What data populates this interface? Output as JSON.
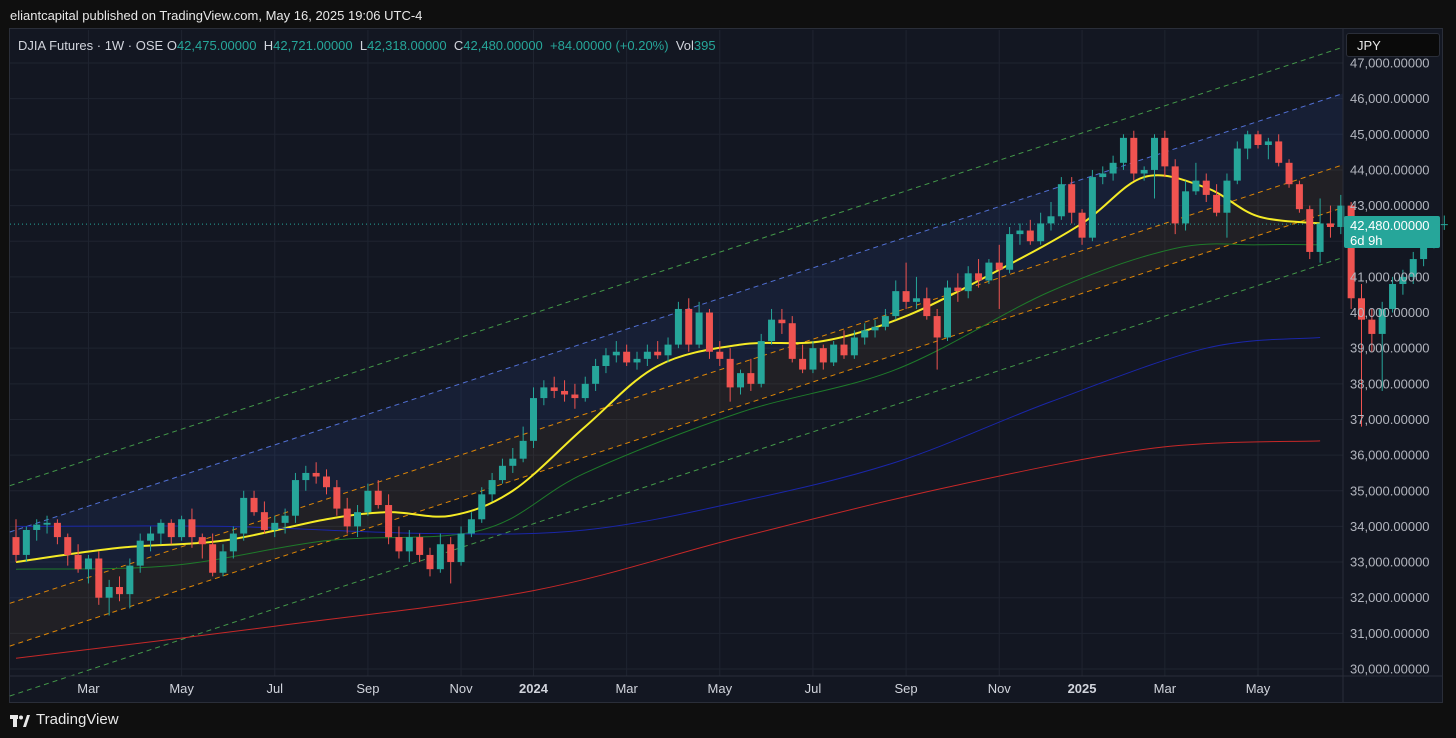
{
  "header": {
    "published_text": "eliantcapital published on TradingView.com, May 16, 2025 19:06 UTC-4"
  },
  "legend": {
    "symbol": "DJIA Futures · 1W · OSE",
    "o_label": "O",
    "o_value": "42,475.00000",
    "h_label": "H",
    "h_value": "42,721.00000",
    "l_label": "L",
    "l_value": "42,318.00000",
    "c_label": "C",
    "c_value": "42,480.00000",
    "change": "+84.00000 (+0.20%)",
    "vol_label": "Vol",
    "vol_value": "395"
  },
  "currency_button": "JPY",
  "price_tag": {
    "price": "42,480.00000",
    "countdown": "6d 9h"
  },
  "footer": {
    "brand": "TradingView"
  },
  "colors": {
    "up": "#26a69a",
    "down": "#ef5350",
    "ma_fast": "#f5eb26",
    "ma_mid": "#1e7a2a",
    "ma_slow": "#1a26a8",
    "ma_long": "#c62828",
    "channel_outer": "#4caf50",
    "channel_upper": "#5b7ef0",
    "channel_inner": "#ff9800"
  },
  "chart_data": {
    "type": "candlestick",
    "timeframe": "1W",
    "currency": "JPY",
    "ylim": [
      30000,
      47000
    ],
    "y_ticks": [
      "30,000.00000",
      "31,000.00000",
      "32,000.00000",
      "33,000.00000",
      "34,000.00000",
      "35,000.00000",
      "36,000.00000",
      "37,000.00000",
      "38,000.00000",
      "39,000.00000",
      "40,000.00000",
      "41,000.00000",
      "42,000.00000",
      "43,000.00000",
      "44,000.00000",
      "45,000.00000",
      "46,000.00000",
      "47,000.00000"
    ],
    "x_ticks": [
      {
        "label": "Mar",
        "bold": false,
        "week": 7
      },
      {
        "label": "May",
        "bold": false,
        "week": 16
      },
      {
        "label": "Jul",
        "bold": false,
        "week": 25
      },
      {
        "label": "Sep",
        "bold": false,
        "week": 34
      },
      {
        "label": "Nov",
        "bold": false,
        "week": 43
      },
      {
        "label": "2024",
        "bold": true,
        "week": 50
      },
      {
        "label": "Mar",
        "bold": false,
        "week": 59
      },
      {
        "label": "May",
        "bold": false,
        "week": 68
      },
      {
        "label": "Jul",
        "bold": false,
        "week": 77
      },
      {
        "label": "Sep",
        "bold": false,
        "week": 86
      },
      {
        "label": "Nov",
        "bold": false,
        "week": 95
      },
      {
        "label": "2025",
        "bold": true,
        "week": 103
      },
      {
        "label": "Mar",
        "bold": false,
        "week": 111
      },
      {
        "label": "May",
        "bold": false,
        "week": 120
      }
    ],
    "last_price": 42480,
    "candles": [
      [
        33700,
        34200,
        33000,
        33200
      ],
      [
        33200,
        34000,
        33000,
        33900
      ],
      [
        33900,
        34200,
        33600,
        34050
      ],
      [
        34050,
        34300,
        33800,
        34100
      ],
      [
        34100,
        34200,
        33500,
        33700
      ],
      [
        33700,
        33800,
        32900,
        33200
      ],
      [
        33200,
        33500,
        32700,
        32800
      ],
      [
        32800,
        33200,
        32400,
        33100
      ],
      [
        33100,
        33300,
        31800,
        32000
      ],
      [
        32000,
        32500,
        31500,
        32300
      ],
      [
        32300,
        32600,
        31900,
        32100
      ],
      [
        32100,
        33100,
        31700,
        32900
      ],
      [
        32900,
        33800,
        32700,
        33600
      ],
      [
        33600,
        34000,
        33300,
        33800
      ],
      [
        33800,
        34200,
        33500,
        34100
      ],
      [
        34100,
        34200,
        33500,
        33700
      ],
      [
        33700,
        34300,
        33600,
        34200
      ],
      [
        34200,
        34500,
        33400,
        33700
      ],
      [
        33700,
        33800,
        33100,
        33500
      ],
      [
        33500,
        33800,
        32600,
        32700
      ],
      [
        32700,
        33500,
        32600,
        33300
      ],
      [
        33300,
        34000,
        33100,
        33800
      ],
      [
        33800,
        35000,
        33600,
        34800
      ],
      [
        34800,
        35000,
        34300,
        34400
      ],
      [
        34400,
        34700,
        33800,
        33900
      ],
      [
        33900,
        34300,
        33700,
        34100
      ],
      [
        34100,
        34500,
        33800,
        34300
      ],
      [
        34300,
        35500,
        34100,
        35300
      ],
      [
        35300,
        35700,
        35000,
        35500
      ],
      [
        35500,
        35800,
        35200,
        35400
      ],
      [
        35400,
        35600,
        34900,
        35100
      ],
      [
        35100,
        35300,
        34300,
        34500
      ],
      [
        34500,
        34800,
        33800,
        34000
      ],
      [
        34000,
        34600,
        33700,
        34400
      ],
      [
        34400,
        35200,
        34300,
        35000
      ],
      [
        35000,
        35300,
        34500,
        34600
      ],
      [
        34600,
        34900,
        33500,
        33700
      ],
      [
        33700,
        34000,
        33100,
        33300
      ],
      [
        33300,
        33900,
        33000,
        33700
      ],
      [
        33700,
        33800,
        33000,
        33200
      ],
      [
        33200,
        33400,
        32600,
        32800
      ],
      [
        32800,
        33800,
        32700,
        33500
      ],
      [
        33500,
        33700,
        32400,
        33000
      ],
      [
        33000,
        34000,
        32900,
        33800
      ],
      [
        33800,
        34400,
        33700,
        34200
      ],
      [
        34200,
        35100,
        34100,
        34900
      ],
      [
        34900,
        35500,
        34700,
        35300
      ],
      [
        35300,
        35900,
        35200,
        35700
      ],
      [
        35700,
        36200,
        35500,
        35900
      ],
      [
        35900,
        36800,
        35800,
        36400
      ],
      [
        36400,
        37900,
        36200,
        37600
      ],
      [
        37600,
        38100,
        37400,
        37900
      ],
      [
        37900,
        38200,
        37600,
        37800
      ],
      [
        37800,
        38100,
        37500,
        37700
      ],
      [
        37700,
        38000,
        37300,
        37600
      ],
      [
        37600,
        38200,
        37500,
        38000
      ],
      [
        38000,
        38700,
        37800,
        38500
      ],
      [
        38500,
        39000,
        38300,
        38800
      ],
      [
        38800,
        39200,
        38600,
        38900
      ],
      [
        38900,
        39100,
        38500,
        38600
      ],
      [
        38600,
        38900,
        38400,
        38700
      ],
      [
        38700,
        39100,
        38500,
        38900
      ],
      [
        38900,
        39200,
        38700,
        38800
      ],
      [
        38800,
        39300,
        38600,
        39100
      ],
      [
        39100,
        40300,
        39000,
        40100
      ],
      [
        40100,
        40400,
        38900,
        39100
      ],
      [
        39100,
        40300,
        39000,
        40000
      ],
      [
        40000,
        40100,
        38700,
        38900
      ],
      [
        38900,
        39200,
        38500,
        38700
      ],
      [
        38700,
        39000,
        37500,
        37900
      ],
      [
        37900,
        38400,
        37700,
        38300
      ],
      [
        38300,
        38700,
        37800,
        38000
      ],
      [
        38000,
        39400,
        37900,
        39200
      ],
      [
        39200,
        40100,
        39100,
        39800
      ],
      [
        39800,
        40100,
        39400,
        39700
      ],
      [
        39700,
        39900,
        38600,
        38700
      ],
      [
        38700,
        39100,
        38300,
        38400
      ],
      [
        38400,
        39200,
        38300,
        39000
      ],
      [
        39000,
        39100,
        38400,
        38600
      ],
      [
        38600,
        39200,
        38500,
        39100
      ],
      [
        39100,
        39500,
        38700,
        38800
      ],
      [
        38800,
        39500,
        38700,
        39300
      ],
      [
        39300,
        39700,
        39100,
        39500
      ],
      [
        39500,
        39800,
        39300,
        39600
      ],
      [
        39600,
        40100,
        39500,
        39900
      ],
      [
        39900,
        40900,
        39800,
        40600
      ],
      [
        40600,
        41400,
        40100,
        40300
      ],
      [
        40300,
        41000,
        40100,
        40400
      ],
      [
        40400,
        40700,
        39800,
        39900
      ],
      [
        39900,
        40100,
        38400,
        39300
      ],
      [
        39300,
        40900,
        39200,
        40700
      ],
      [
        40700,
        41100,
        40300,
        40600
      ],
      [
        40600,
        41300,
        40400,
        41100
      ],
      [
        41100,
        41500,
        40700,
        40900
      ],
      [
        40900,
        41500,
        40800,
        41400
      ],
      [
        41400,
        41900,
        40100,
        41200
      ],
      [
        41200,
        42400,
        41100,
        42200
      ],
      [
        42200,
        42500,
        41900,
        42300
      ],
      [
        42300,
        42600,
        41900,
        42000
      ],
      [
        42000,
        42800,
        41900,
        42500
      ],
      [
        42500,
        43100,
        42300,
        42700
      ],
      [
        42700,
        43800,
        42600,
        43600
      ],
      [
        43600,
        43800,
        42500,
        42800
      ],
      [
        42800,
        42900,
        41900,
        42100
      ],
      [
        42100,
        44000,
        42000,
        43800
      ],
      [
        43800,
        44100,
        43600,
        43900
      ],
      [
        43900,
        44400,
        43700,
        44200
      ],
      [
        44200,
        45000,
        44000,
        44900
      ],
      [
        44900,
        45100,
        43700,
        43900
      ],
      [
        43900,
        44100,
        43700,
        44000
      ],
      [
        44000,
        45000,
        43200,
        44900
      ],
      [
        44900,
        45100,
        43800,
        44100
      ],
      [
        44100,
        44300,
        42200,
        42500
      ],
      [
        42500,
        43700,
        42300,
        43400
      ],
      [
        43400,
        44200,
        43300,
        43700
      ],
      [
        43700,
        43900,
        43100,
        43300
      ],
      [
        43300,
        43600,
        42700,
        42800
      ],
      [
        42800,
        43900,
        42100,
        43700
      ],
      [
        43700,
        44800,
        43600,
        44600
      ],
      [
        44600,
        45100,
        44300,
        45000
      ],
      [
        45000,
        45100,
        44600,
        44700
      ],
      [
        44700,
        44900,
        44300,
        44800
      ],
      [
        44800,
        45000,
        44100,
        44200
      ],
      [
        44200,
        44300,
        43500,
        43600
      ],
      [
        43600,
        43700,
        42800,
        42900
      ],
      [
        42900,
        43000,
        41500,
        41700
      ],
      [
        41700,
        43200,
        41400,
        42500
      ],
      [
        42500,
        43000,
        42100,
        42400
      ],
      [
        42400,
        43300,
        42200,
        43000
      ],
      [
        43000,
        43100,
        40100,
        40400
      ],
      [
        40400,
        40800,
        36800,
        39800
      ],
      [
        39800,
        40100,
        38900,
        39400
      ],
      [
        39400,
        40300,
        37800,
        40100
      ],
      [
        40100,
        41000,
        40000,
        40800
      ],
      [
        40800,
        41200,
        40500,
        41000
      ],
      [
        41000,
        41700,
        40800,
        41500
      ],
      [
        41500,
        42300,
        41300,
        41900
      ],
      [
        41900,
        42700,
        41800,
        42500
      ],
      [
        42475,
        42721,
        42318,
        42480
      ]
    ],
    "overlays": [
      {
        "name": "ma_fast",
        "color": "#f5eb26",
        "width": 2,
        "points": [
          [
            0,
            33000
          ],
          [
            10,
            33400
          ],
          [
            20,
            33600
          ],
          [
            30,
            34200
          ],
          [
            36,
            34400
          ],
          [
            42,
            34300
          ],
          [
            48,
            35000
          ],
          [
            55,
            36800
          ],
          [
            62,
            38500
          ],
          [
            70,
            39100
          ],
          [
            78,
            39200
          ],
          [
            86,
            39900
          ],
          [
            95,
            41200
          ],
          [
            103,
            42500
          ],
          [
            109,
            43800
          ],
          [
            115,
            43500
          ],
          [
            120,
            42700
          ],
          [
            126,
            42500
          ]
        ]
      },
      {
        "name": "ma_mid",
        "color": "#1e7a2a",
        "width": 1,
        "points": [
          [
            0,
            32800
          ],
          [
            15,
            32900
          ],
          [
            30,
            33600
          ],
          [
            45,
            33900
          ],
          [
            55,
            35500
          ],
          [
            70,
            37200
          ],
          [
            85,
            38400
          ],
          [
            100,
            40600
          ],
          [
            112,
            41800
          ],
          [
            120,
            41900
          ],
          [
            126,
            41900
          ]
        ]
      },
      {
        "name": "ma_slow",
        "color": "#1a26a8",
        "width": 1,
        "points": [
          [
            0,
            34000
          ],
          [
            20,
            34000
          ],
          [
            40,
            33800
          ],
          [
            55,
            33900
          ],
          [
            70,
            34700
          ],
          [
            85,
            35800
          ],
          [
            100,
            37500
          ],
          [
            115,
            39000
          ],
          [
            126,
            39300
          ]
        ]
      },
      {
        "name": "ma_long",
        "color": "#c62828",
        "width": 1,
        "points": [
          [
            0,
            30300
          ],
          [
            25,
            31200
          ],
          [
            50,
            32200
          ],
          [
            70,
            33700
          ],
          [
            90,
            35100
          ],
          [
            110,
            36200
          ],
          [
            126,
            36400
          ]
        ]
      }
    ],
    "channel": {
      "slope_per_week": 95.5,
      "lines": [
        {
          "name": "outer_upper",
          "color": "#4caf50",
          "dash": true,
          "y0": 35200
        },
        {
          "name": "upper",
          "color": "#5b7ef0",
          "dash": true,
          "y0": 33900
        },
        {
          "name": "inner",
          "color": "#ff9800",
          "dash": true,
          "y0": 31900
        },
        {
          "name": "mid",
          "color": "#ff9800",
          "dash": true,
          "y0": 30700
        },
        {
          "name": "outer_lower",
          "color": "#4caf50",
          "dash": true,
          "y0": 29300
        }
      ]
    },
    "grid": true
  }
}
